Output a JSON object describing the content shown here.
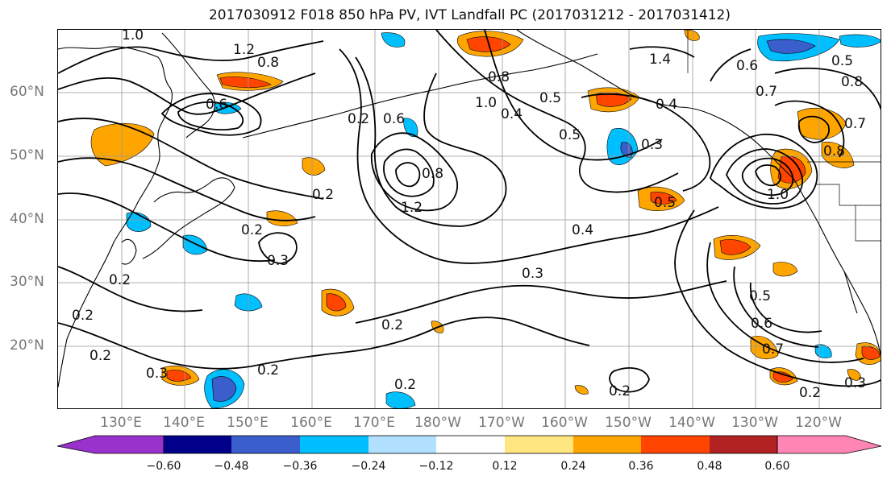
{
  "title": "2017030912 F018 850 hPa PV, IVT Landfall PC (2017031212 - 2017031412)",
  "lat_labels": [
    "60°N",
    "50°N",
    "40°N",
    "30°N",
    "20°N"
  ],
  "lon_labels": [
    "130°E",
    "140°E",
    "150°E",
    "160°E",
    "170°E",
    "180°W",
    "170°W",
    "160°W",
    "150°W",
    "140°W",
    "130°W",
    "120°W"
  ],
  "colorbar": {
    "ticks": [
      "−0.60",
      "−0.48",
      "−0.36",
      "−0.24",
      "−0.12",
      "0.12",
      "0.24",
      "0.36",
      "0.48",
      "0.60"
    ],
    "colors": [
      "#9932cc",
      "#00008b",
      "#3a5fcd",
      "#00bfff",
      "#b2e1ff",
      "#ffffff",
      "#ffe680",
      "#ffa500",
      "#ff4500",
      "#b22222",
      "#ff85b4"
    ]
  },
  "contour_labels": [
    "1.0",
    "1.2",
    "0.8",
    "0.6",
    "0.2",
    "0.6",
    "1.0",
    "0.8",
    "0.4",
    "0.5",
    "1.4",
    "0.6",
    "0.7",
    "0.5",
    "0.8",
    "0.4",
    "0.3",
    "0.5",
    "0.7",
    "0.8",
    "1.0",
    "1.2",
    "0.8",
    "0.2",
    "0.2",
    "0.3",
    "0.4",
    "0.3",
    "0.5",
    "0.2",
    "0.2",
    "0.2",
    "0.2",
    "0.3",
    "0.2",
    "0.5",
    "0.6",
    "0.7",
    "0.2",
    "0.3",
    "0.2",
    "0.2"
  ]
}
